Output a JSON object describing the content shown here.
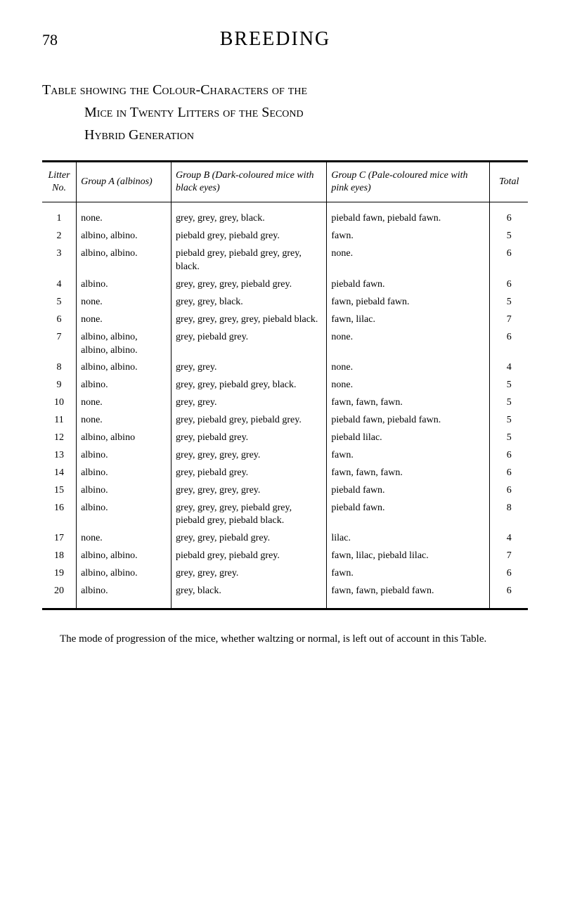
{
  "page_number": "78",
  "page_title": "BREEDING",
  "caption_line1": "Table showing the Colour-Characters of the",
  "caption_line2": "Mice in Twenty Litters of the Second",
  "caption_line3": "Hybrid Generation",
  "headers": {
    "litter": "Litter No.",
    "groupA": "Group A (albinos)",
    "groupB": "Group B (Dark-coloured mice with black eyes)",
    "groupC": "Group C (Pale-coloured mice with pink eyes)",
    "total": "Total"
  },
  "rows": [
    {
      "n": "1",
      "a": "none.",
      "b": "grey, grey, grey, black.",
      "c": "piebald fawn, piebald fawn.",
      "t": "6"
    },
    {
      "n": "2",
      "a": "albino, albino.",
      "b": "piebald grey, piebald grey.",
      "c": "fawn.",
      "t": "5"
    },
    {
      "n": "3",
      "a": "albino, albino.",
      "b": "piebald grey, piebald grey, grey, black.",
      "c": "none.",
      "t": "6"
    },
    {
      "n": "4",
      "a": "albino.",
      "b": "grey, grey, grey, piebald grey.",
      "c": "piebald fawn.",
      "t": "6"
    },
    {
      "n": "5",
      "a": "none.",
      "b": "grey, grey, black.",
      "c": "fawn, piebald fawn.",
      "t": "5"
    },
    {
      "n": "6",
      "a": "none.",
      "b": "grey, grey, grey, grey, piebald black.",
      "c": "fawn, lilac.",
      "t": "7"
    },
    {
      "n": "7",
      "a": "albino, albino, albino, albino.",
      "b": "grey, piebald grey.",
      "c": "none.",
      "t": "6"
    },
    {
      "n": "8",
      "a": "albino, albino.",
      "b": "grey, grey.",
      "c": "none.",
      "t": "4"
    },
    {
      "n": "9",
      "a": "albino.",
      "b": "grey, grey, piebald grey, black.",
      "c": "none.",
      "t": "5"
    },
    {
      "n": "10",
      "a": "none.",
      "b": "grey, grey.",
      "c": "fawn, fawn, fawn.",
      "t": "5"
    },
    {
      "n": "11",
      "a": "none.",
      "b": "grey, piebald grey, piebald grey.",
      "c": "piebald fawn, piebald fawn.",
      "t": "5"
    },
    {
      "n": "12",
      "a": "albino, albino",
      "b": "grey, piebald grey.",
      "c": "piebald lilac.",
      "t": "5"
    },
    {
      "n": "13",
      "a": "albino.",
      "b": "grey, grey, grey, grey.",
      "c": "fawn.",
      "t": "6"
    },
    {
      "n": "14",
      "a": "albino.",
      "b": "grey, piebald grey.",
      "c": "fawn, fawn, fawn.",
      "t": "6"
    },
    {
      "n": "15",
      "a": "albino.",
      "b": "grey, grey, grey, grey.",
      "c": "piebald fawn.",
      "t": "6"
    },
    {
      "n": "16",
      "a": "albino.",
      "b": "grey, grey, grey, piebald grey, piebald grey, piebald black.",
      "c": "piebald fawn.",
      "t": "8"
    },
    {
      "n": "17",
      "a": "none.",
      "b": "grey, grey, piebald grey.",
      "c": "lilac.",
      "t": "4"
    },
    {
      "n": "18",
      "a": "albino, albino.",
      "b": "piebald grey, piebald grey.",
      "c": "fawn, lilac, piebald lilac.",
      "t": "7"
    },
    {
      "n": "19",
      "a": "albino, albino.",
      "b": "grey, grey, grey.",
      "c": "fawn.",
      "t": "6"
    },
    {
      "n": "20",
      "a": "albino.",
      "b": "grey, black.",
      "c": "fawn, fawn, piebald fawn.",
      "t": "6"
    }
  ],
  "footnote": "The mode of progression of the mice, whether waltzing or normal, is left out of account in this Table."
}
